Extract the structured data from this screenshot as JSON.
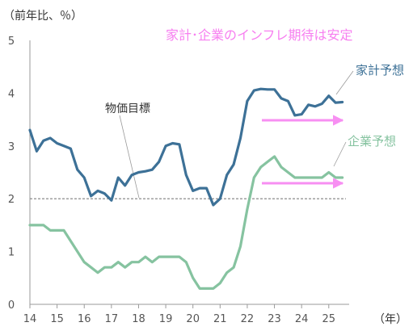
{
  "chart_data": {
    "type": "line",
    "title": "家計･企業のインフレ期待は安定",
    "ylabel": "（前年比、％）",
    "xlabel": "（年）",
    "ylim": [
      0,
      5
    ],
    "xlim": [
      14,
      25.75
    ],
    "yticks": [
      0,
      1,
      2,
      3,
      4,
      5
    ],
    "xticks": [
      14,
      15,
      16,
      17,
      18,
      19,
      20,
      21,
      22,
      23,
      24,
      25
    ],
    "grid": false,
    "colors": {
      "household": "#3d7197",
      "corporate": "#86c3a0",
      "target": "#7f7f7f",
      "arrow": "#f78ff2",
      "title": "#f77ff0"
    },
    "target": {
      "name": "物価目標",
      "value": 2
    },
    "series": [
      {
        "name": "家計予想",
        "x": [
          14.0,
          14.25,
          14.5,
          14.75,
          15.0,
          15.25,
          15.5,
          15.75,
          16.0,
          16.25,
          16.5,
          16.75,
          17.0,
          17.25,
          17.5,
          17.75,
          18.0,
          18.25,
          18.5,
          18.75,
          19.0,
          19.25,
          19.5,
          19.75,
          20.0,
          20.25,
          20.5,
          20.75,
          21.0,
          21.25,
          21.5,
          21.75,
          22.0,
          22.25,
          22.5,
          22.75,
          23.0,
          23.25,
          23.5,
          23.75,
          24.0,
          24.25,
          24.5,
          24.75,
          25.0,
          25.25,
          25.5
        ],
        "values": [
          3.3,
          2.9,
          3.1,
          3.15,
          3.05,
          3.0,
          2.95,
          2.55,
          2.4,
          2.05,
          2.15,
          2.1,
          1.97,
          2.4,
          2.25,
          2.45,
          2.5,
          2.52,
          2.55,
          2.7,
          3.0,
          3.05,
          3.03,
          2.45,
          2.15,
          2.2,
          2.2,
          1.88,
          2.0,
          2.45,
          2.65,
          3.15,
          3.85,
          4.05,
          4.08,
          4.07,
          4.07,
          3.9,
          3.85,
          3.58,
          3.6,
          3.78,
          3.75,
          3.8,
          3.95,
          3.82,
          3.83
        ]
      },
      {
        "name": "企業予想",
        "x": [
          14.0,
          14.25,
          14.5,
          14.75,
          15.0,
          15.25,
          15.5,
          15.75,
          16.0,
          16.25,
          16.5,
          16.75,
          17.0,
          17.25,
          17.5,
          17.75,
          18.0,
          18.25,
          18.5,
          18.75,
          19.0,
          19.25,
          19.5,
          19.75,
          20.0,
          20.25,
          20.5,
          20.75,
          21.0,
          21.25,
          21.5,
          21.75,
          22.0,
          22.25,
          22.5,
          22.75,
          23.0,
          23.25,
          23.5,
          23.75,
          24.0,
          24.25,
          24.5,
          24.75,
          25.0,
          25.25,
          25.5
        ],
        "values": [
          1.5,
          1.5,
          1.5,
          1.4,
          1.4,
          1.4,
          1.2,
          1.0,
          0.8,
          0.7,
          0.6,
          0.7,
          0.7,
          0.8,
          0.7,
          0.8,
          0.8,
          0.9,
          0.8,
          0.9,
          0.9,
          0.9,
          0.9,
          0.8,
          0.5,
          0.3,
          0.3,
          0.3,
          0.4,
          0.6,
          0.7,
          1.1,
          1.8,
          2.4,
          2.6,
          2.7,
          2.8,
          2.6,
          2.5,
          2.4,
          2.4,
          2.4,
          2.4,
          2.4,
          2.5,
          2.4,
          2.4
        ]
      }
    ]
  }
}
